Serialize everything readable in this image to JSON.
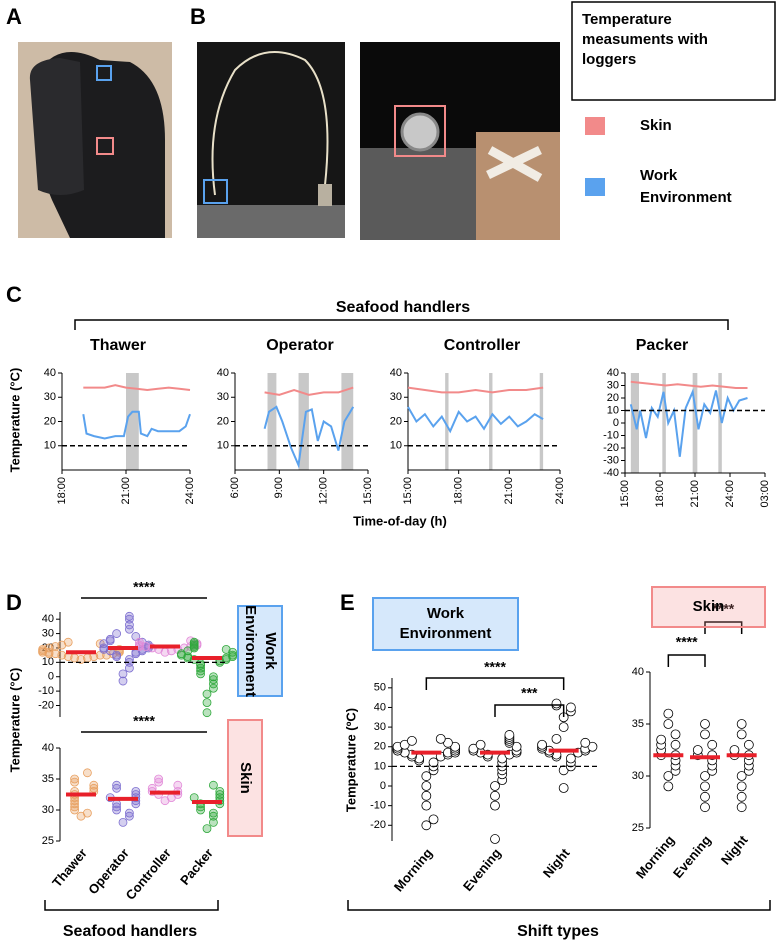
{
  "panel_labels": [
    "A",
    "B",
    "C",
    "D",
    "E"
  ],
  "legend": {
    "title_lines": [
      "Temperature",
      "measuments with",
      "loggers"
    ],
    "items": [
      {
        "lines": [
          "Skin"
        ],
        "color": "#f28a8a"
      },
      {
        "lines": [
          "Work",
          "Environment"
        ],
        "color": "#5aa2ee"
      }
    ]
  },
  "panel_c": {
    "header": "Seafood handlers",
    "y_label": "Temperature (°C)",
    "x_label": "Time-of-day (h)"
  },
  "panel_d": {
    "y_label": "Temperature (°C)",
    "group_label": "Seafood handlers"
  },
  "panel_e": {
    "group_label": "Shift types"
  },
  "chart_data": [
    {
      "type": "line",
      "title": "Thawer",
      "xlim": [
        18,
        24
      ],
      "ylim": [
        0,
        40
      ],
      "xticks": [
        {
          "value": 18,
          "label": "18:00"
        },
        {
          "value": 21,
          "label": "21:00"
        },
        {
          "value": 24,
          "label": "24:00"
        }
      ],
      "yticks": [
        10,
        20,
        30,
        40
      ],
      "reference_line": 10,
      "shaded": [
        [
          21,
          21.6
        ]
      ],
      "series": [
        {
          "color": "#f28a8a",
          "x": [
            19,
            19.5,
            20,
            20.5,
            21,
            21.5,
            22,
            22.5,
            23,
            23.5,
            24
          ],
          "values": [
            34,
            34,
            34,
            35,
            34,
            33.5,
            33,
            33.5,
            34,
            33.5,
            33
          ]
        },
        {
          "color": "#5aa2ee",
          "x": [
            19,
            19.15,
            19.5,
            20,
            20.5,
            20.9,
            21.1,
            21.3,
            21.6,
            21.7,
            22,
            22.2,
            22.5,
            23,
            23.5,
            23.8,
            24
          ],
          "values": [
            23,
            15,
            14,
            13,
            14,
            14,
            22,
            24,
            24,
            15,
            14,
            17,
            16,
            16,
            16,
            18,
            23
          ]
        }
      ]
    },
    {
      "type": "line",
      "title": "Operator",
      "xlim": [
        6,
        15
      ],
      "ylim": [
        0,
        40
      ],
      "xticks": [
        {
          "value": 6,
          "label": "6:00"
        },
        {
          "value": 9,
          "label": "9:00"
        },
        {
          "value": 12,
          "label": "12:00"
        },
        {
          "value": 15,
          "label": "15:00"
        }
      ],
      "yticks": [
        10,
        20,
        30,
        40
      ],
      "reference_line": 10,
      "shaded": [
        [
          8.2,
          8.8
        ],
        [
          10.3,
          11
        ],
        [
          13.2,
          14
        ]
      ],
      "series": [
        {
          "color": "#f28a8a",
          "x": [
            8,
            9,
            10,
            11,
            12,
            13,
            14
          ],
          "values": [
            32,
            31,
            33,
            31,
            32,
            32,
            34
          ]
        },
        {
          "color": "#5aa2ee",
          "x": [
            8,
            8.3,
            8.8,
            9.2,
            9.8,
            10.3,
            10.8,
            11.2,
            11.6,
            12,
            12.5,
            13,
            13.4,
            13.8,
            14
          ],
          "values": [
            17,
            24,
            26,
            20,
            9,
            2,
            24,
            25,
            12,
            20,
            18,
            8,
            20,
            24,
            26
          ]
        }
      ]
    },
    {
      "type": "line",
      "title": "Controller",
      "xlim": [
        15,
        24
      ],
      "ylim": [
        0,
        40
      ],
      "xticks": [
        {
          "value": 15,
          "label": "15:00"
        },
        {
          "value": 18,
          "label": "18:00"
        },
        {
          "value": 21,
          "label": "21:00"
        },
        {
          "value": 24,
          "label": "24:00"
        }
      ],
      "yticks": [
        10,
        20,
        30,
        40
      ],
      "reference_line": 10,
      "shaded": [
        [
          17.2,
          17.4
        ],
        [
          19.8,
          20
        ],
        [
          22.8,
          23
        ]
      ],
      "series": [
        {
          "color": "#f28a8a",
          "x": [
            15,
            16,
            17,
            18,
            19,
            20,
            21,
            22,
            23
          ],
          "values": [
            34,
            33,
            32,
            32,
            33,
            32,
            33,
            33,
            34
          ]
        },
        {
          "color": "#5aa2ee",
          "x": [
            15,
            15.5,
            16,
            16.5,
            17,
            17.5,
            18,
            18.5,
            19,
            19.5,
            20,
            20.5,
            21,
            21.5,
            22,
            22.5,
            23
          ],
          "values": [
            26,
            20,
            23,
            18,
            22,
            16,
            24,
            20,
            22,
            17,
            23,
            19,
            22,
            18,
            20,
            23,
            21
          ]
        }
      ]
    },
    {
      "type": "line",
      "title": "Packer",
      "xlim": [
        15,
        27
      ],
      "ylim": [
        -40,
        40
      ],
      "xticks": [
        {
          "value": 15,
          "label": "15:00"
        },
        {
          "value": 18,
          "label": "18:00"
        },
        {
          "value": 21,
          "label": "21:00"
        },
        {
          "value": 24,
          "label": "24:00"
        },
        {
          "value": 27,
          "label": "03:00"
        }
      ],
      "yticks": [
        -40,
        -30,
        -20,
        -10,
        0,
        10,
        20,
        30,
        40
      ],
      "reference_line": 10,
      "shaded": [
        [
          15.5,
          16.2
        ],
        [
          18.2,
          18.5
        ],
        [
          20.8,
          21.2
        ],
        [
          23,
          23.3
        ]
      ],
      "series": [
        {
          "color": "#f28a8a",
          "x": [
            15.5,
            16.5,
            17.5,
            18.5,
            19.5,
            20.5,
            21.5,
            22.5,
            23.5,
            24.5,
            25.5
          ],
          "values": [
            33,
            32,
            31,
            30,
            31,
            30,
            29,
            30,
            29,
            28,
            28
          ]
        },
        {
          "color": "#5aa2ee",
          "x": [
            15.5,
            16,
            16.3,
            16.8,
            17.3,
            17.8,
            18.3,
            18.7,
            19.2,
            19.7,
            20.2,
            20.8,
            21.3,
            21.8,
            22.3,
            22.8,
            23.3,
            23.8,
            24.3,
            24.8,
            25.5
          ],
          "values": [
            15,
            -5,
            10,
            -12,
            12,
            5,
            25,
            0,
            10,
            -27,
            12,
            25,
            -5,
            15,
            8,
            26,
            0,
            20,
            10,
            18,
            20
          ]
        }
      ]
    },
    {
      "type": "dot",
      "ylim": [
        -28,
        45
      ],
      "yticks": [
        -20,
        -10,
        0,
        10,
        20,
        30,
        40
      ],
      "reference_line": 10,
      "colors": [
        "#e8a060",
        "#7d6fd0",
        "#e28ad8",
        "#2fa83c"
      ],
      "values": [
        [
          12,
          13,
          13,
          14,
          14,
          15,
          15,
          15,
          16,
          16,
          16,
          17,
          17,
          17,
          18,
          18,
          19,
          19,
          20,
          21,
          22,
          23,
          24
        ],
        [
          -3,
          2,
          6,
          10,
          12,
          14,
          15,
          16,
          17,
          18,
          18,
          19,
          19,
          20,
          20,
          21,
          22,
          23,
          24,
          25,
          26,
          28,
          30,
          33,
          36,
          40,
          42
        ],
        [
          17,
          18,
          19,
          19,
          20,
          20,
          21,
          21,
          21,
          22,
          22,
          23,
          24,
          25
        ],
        [
          -25,
          -18,
          -12,
          -8,
          -5,
          -2,
          0,
          2,
          4,
          6,
          8,
          9,
          10,
          11,
          12,
          12,
          13,
          13,
          14,
          14,
          15,
          15,
          16,
          17,
          18,
          19,
          20,
          21,
          22,
          23,
          24
        ]
      ],
      "means": [
        17,
        20,
        21,
        13
      ],
      "significance": [
        {
          "between": [
            0,
            3
          ],
          "label": "****"
        }
      ],
      "box_label": [
        "Work",
        "Environment"
      ],
      "box_color": "#5aa2ee"
    },
    {
      "type": "dot",
      "ylim": [
        25,
        40
      ],
      "yticks": [
        25,
        30,
        35,
        40
      ],
      "categories": [
        "Thawer",
        "Operator",
        "Controller",
        "Packer"
      ],
      "colors": [
        "#e8a060",
        "#7d6fd0",
        "#e28ad8",
        "#2fa83c"
      ],
      "values": [
        [
          29,
          29.5,
          30,
          30.5,
          31,
          31.5,
          32,
          32.5,
          33,
          33,
          33.5,
          34,
          34.5,
          35,
          36
        ],
        [
          28,
          29,
          29.5,
          30,
          30.5,
          31,
          31,
          31.5,
          32,
          32,
          32.5,
          33,
          33.5,
          34
        ],
        [
          31.5,
          32,
          32.5,
          32.5,
          33,
          33,
          33.5,
          34,
          34.5,
          35
        ],
        [
          27,
          28,
          29,
          29.5,
          30,
          30.5,
          31,
          31,
          31.5,
          32,
          32,
          32.5,
          33,
          34
        ]
      ],
      "means": [
        32.5,
        31.8,
        32.8,
        31.3
      ],
      "significance": [
        {
          "between": [
            0,
            3
          ],
          "label": "****"
        }
      ],
      "box_label": [
        "Skin"
      ],
      "box_color": "#f28a8a"
    },
    {
      "type": "dot",
      "y_label": "Temperature (ºC)",
      "ylim": [
        -28,
        55
      ],
      "yticks": [
        -20,
        -10,
        0,
        10,
        20,
        30,
        40,
        50
      ],
      "reference_line": 10,
      "categories": [
        "Morning",
        "Evening",
        "Night"
      ],
      "colors": [
        "#000000",
        "#000000",
        "#000000"
      ],
      "values": [
        [
          -20,
          -17,
          -10,
          -5,
          0,
          5,
          8,
          10,
          12,
          13,
          14,
          15,
          15,
          16,
          16,
          17,
          17,
          17,
          18,
          18,
          19,
          19,
          20,
          20,
          21,
          22,
          23,
          24
        ],
        [
          -27,
          -10,
          -5,
          0,
          3,
          6,
          8,
          10,
          12,
          14,
          15,
          16,
          16,
          17,
          17,
          18,
          18,
          19,
          20,
          21,
          22,
          23,
          24,
          25,
          26
        ],
        [
          -1,
          8,
          10,
          12,
          14,
          15,
          16,
          17,
          17,
          18,
          18,
          19,
          19,
          20,
          20,
          21,
          22,
          24,
          30,
          35,
          38,
          40,
          41,
          42
        ]
      ],
      "means": [
        17,
        17,
        18
      ],
      "significance": [
        {
          "between": [
            0,
            2
          ],
          "label": "****"
        },
        {
          "between": [
            1,
            2
          ],
          "label": "***"
        }
      ],
      "box_label": [
        "Work",
        "Environment"
      ],
      "box_color": "#5aa2ee"
    },
    {
      "type": "dot",
      "ylim": [
        25,
        40
      ],
      "yticks": [
        25,
        30,
        35,
        40
      ],
      "categories": [
        "Morning",
        "Evening",
        "Night"
      ],
      "colors": [
        "#000000",
        "#000000",
        "#000000"
      ],
      "values": [
        [
          29,
          30,
          30.5,
          31,
          31.5,
          32,
          32,
          32.5,
          33,
          33,
          33.5,
          34,
          35,
          36
        ],
        [
          27,
          28,
          29,
          30,
          30.5,
          31,
          31.5,
          32,
          32,
          32.5,
          33,
          34,
          35
        ],
        [
          27,
          28,
          29,
          30,
          30.5,
          31,
          31.5,
          32,
          32,
          32.5,
          33,
          34,
          35
        ]
      ],
      "means": [
        32,
        31.8,
        32
      ],
      "significance": [
        {
          "between": [
            0,
            1
          ],
          "label": "****"
        },
        {
          "between": [
            1,
            2
          ],
          "label": "****"
        }
      ],
      "box_label": [
        "Skin"
      ],
      "box_color": "#f28a8a"
    }
  ]
}
